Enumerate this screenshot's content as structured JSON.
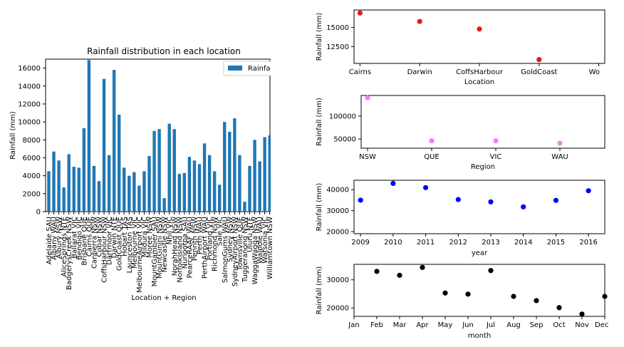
{
  "chart_data": [
    {
      "type": "bar",
      "title": "Rainfall distribution in each location",
      "xlabel": "Location + Region",
      "ylabel": "Rainfall (mm)",
      "legend": [
        "Rainfall"
      ],
      "legend_position": "top-right",
      "ylim": [
        0,
        17000
      ],
      "yticks": [
        0,
        2000,
        4000,
        6000,
        8000,
        10000,
        12000,
        14000,
        16000
      ],
      "bar_color": "#1f77b4",
      "categories": [
        "Adelaide SAU",
        "Albany WAU",
        "Albury NSW",
        "AliceSprings NTE",
        "BadgerysCreek NSW",
        "Ballarat VIC",
        "Bendigo VIC",
        "Brisbane QUE",
        "Cairns QUE",
        "Canberra NSW",
        "Cobar NSW",
        "CoffsHarbour NSW",
        "Dartmoor VIC",
        "Darwin NTE",
        "GoldCoast QUE",
        "Hobart TAS",
        "Launceston TAS",
        "Melbourne VIC",
        "MelbourneAirport VIC",
        "Mildura VIC",
        "Moree NSW",
        "MountGambier SAU",
        "MountGinini NSW",
        "Newcastle NSW",
        "Nhil VIC",
        "NorahHead NSW",
        "NorfolkIsland NSW",
        "Nuriootpa SAU",
        "PearceRAAF WAU",
        "Penrith NSW",
        "Perth WAU",
        "PerthAirport WAU",
        "Portland VIC",
        "Richmond NSW",
        "Sale VIC",
        "SalmonGums WAU",
        "Sydney NSW",
        "SydneyAirport NSW",
        "Townsville QUE",
        "Tuggeranong NSW",
        "Uluru NTE",
        "WaggaWagga NSW",
        "Walpole WAU",
        "Watsonia VIC",
        "Williamtown NSW",
        "Witchcliffe WAU"
      ],
      "values": [
        4500,
        6700,
        5700,
        2700,
        6400,
        5000,
        4900,
        9300,
        16900,
        5100,
        3400,
        14800,
        6300,
        15800,
        10800,
        4900,
        4000,
        4400,
        2900,
        4500,
        6200,
        9000,
        9200,
        1500,
        9800,
        9200,
        4200,
        4300,
        6100,
        5700,
        5300,
        7600,
        6300,
        4500,
        3000,
        10000,
        8900,
        10400,
        6300,
        1100,
        5100,
        8000,
        5600,
        8300,
        8500,
        8700
      ],
      "tick_labels": [
        "Adelaide SAU",
        "Albany WAU",
        "Albury NSW",
        "AliceSprings NTE",
        "BadgerysCreek NSW",
        "Ballarat VIC",
        "Bendigo VIC",
        "Brisbane QUE",
        "Cairns QUE",
        "Canberra NSW",
        "Cobar NSW",
        "CoffsHarbour NSW",
        "Dartmoor VIC",
        "Darwin NTE",
        "GoldCoast QUE",
        "Hobart TAS",
        "Launceston TAS",
        "Melbourne VIC",
        "MelbourneAirport VIC",
        "Mildura VIC",
        "Moree NSW",
        "MountGambier SAU",
        "MountGinini NSW",
        "Newcastle NSW",
        "Nhil VIC",
        "NorahHead NSW",
        "NorfolkIsland NSW",
        "Nuriootpa SAU",
        "PearceRAAF WAU",
        "Penrith NSW",
        "Perth WAU",
        "PerthAirport WAU",
        "Portland VIC",
        "Richmond NSW",
        "Sale VIC",
        "SalmonGums WAU",
        "Sydney NSW",
        "SydneyAirport NSW",
        "Townsville QUE",
        "Tuggeranong NSW",
        "Uluru NTE",
        "WaggaWagga NSW",
        "Walpole WAU",
        "Watsonia VIC",
        "Williamtown NSW",
        "Witchcliffe WAU"
      ]
    },
    {
      "type": "scatter",
      "xlabel": "Location",
      "ylabel": "Rainfall (mm)",
      "categories": [
        "Cairns",
        "Darwin",
        "CoffsHarbour",
        "GoldCoast"
      ],
      "tick_labels": [
        "Cairns",
        "Darwin",
        "CoffsHarbour",
        "GoldCoast",
        "Wo"
      ],
      "values": [
        16900,
        15800,
        14800,
        10800
      ],
      "ylim": [
        10300,
        17300
      ],
      "yticks": [
        12500,
        15000
      ],
      "ytick_labels": [
        "12500",
        "15000"
      ],
      "color": "#e31a1c"
    },
    {
      "type": "scatter",
      "xlabel": "Region",
      "ylabel": "Rainfall (mm)",
      "categories": [
        "NSW",
        "QUE",
        "VIC",
        "WAU"
      ],
      "tick_labels": [
        "NSW",
        "QUE",
        "VIC",
        "WAU"
      ],
      "values": [
        140000,
        46000,
        46000,
        41000
      ],
      "ylim": [
        30000,
        145000
      ],
      "yticks": [
        50000,
        100000
      ],
      "ytick_labels": [
        "50000",
        "100000"
      ],
      "color": "#ee82ee"
    },
    {
      "type": "scatter",
      "xlabel": "year",
      "ylabel": "Rainfall (mm)",
      "x": [
        2009,
        2010,
        2011,
        2012,
        2013,
        2014,
        2015,
        2016
      ],
      "tick_labels": [
        "2009",
        "2010",
        "2011",
        "2012",
        "2013",
        "2014",
        "2015",
        "2016"
      ],
      "values": [
        35000,
        43000,
        41000,
        35300,
        34200,
        31800,
        34900,
        39500
      ],
      "ylim": [
        19000,
        44500
      ],
      "yticks": [
        20000,
        30000,
        40000
      ],
      "ytick_labels": [
        "20000",
        "30000",
        "40000"
      ],
      "color": "#0000ff"
    },
    {
      "type": "scatter",
      "xlabel": "month",
      "ylabel": "Rainfall (mm)",
      "categories": [
        "Jan",
        "Feb",
        "Mar",
        "Apr",
        "May",
        "Jun",
        "Jul",
        "Aug",
        "Sep",
        "Oct",
        "Nov",
        "Dec"
      ],
      "tick_labels": [
        "Jan",
        "Feb",
        "Mar",
        "Apr",
        "May",
        "Jun",
        "Jul",
        "Aug",
        "Sep",
        "Oct",
        "Nov",
        "Dec"
      ],
      "x": [
        2,
        3,
        4,
        5,
        6,
        7,
        8,
        9,
        10,
        11,
        12
      ],
      "values": [
        33000,
        31600,
        34400,
        25300,
        24900,
        33300,
        24100,
        22600,
        20100,
        17800,
        24100
      ],
      "ylim": [
        17000,
        35500
      ],
      "yticks": [
        20000,
        30000
      ],
      "ytick_labels": [
        "20000",
        "30000"
      ],
      "color": "#000000"
    }
  ]
}
